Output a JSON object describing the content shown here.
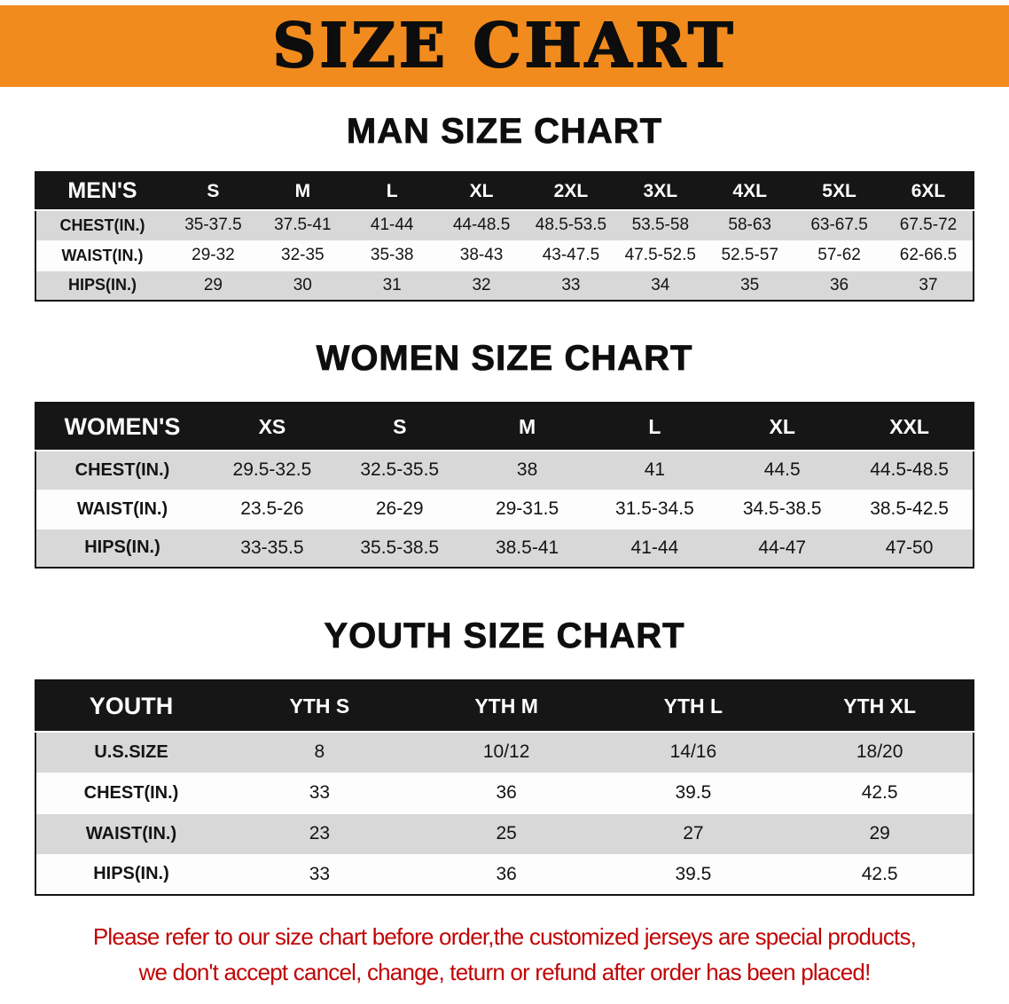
{
  "banner": {
    "title": "SIZE CHART"
  },
  "men": {
    "heading": "MAN SIZE CHART",
    "table": {
      "header": [
        "MEN'S",
        "S",
        "M",
        "L",
        "XL",
        "2XL",
        "3XL",
        "4XL",
        "5XL",
        "6XL"
      ],
      "rows": [
        [
          "CHEST(IN.)",
          "35-37.5",
          "37.5-41",
          "41-44",
          "44-48.5",
          "48.5-53.5",
          "53.5-58",
          "58-63",
          "63-67.5",
          "67.5-72"
        ],
        [
          "WAIST(IN.)",
          "29-32",
          "32-35",
          "35-38",
          "38-43",
          "43-47.5",
          "47.5-52.5",
          "52.5-57",
          "57-62",
          "62-66.5"
        ],
        [
          "HIPS(IN.)",
          "29",
          "30",
          "31",
          "32",
          "33",
          "34",
          "35",
          "36",
          "37"
        ]
      ]
    }
  },
  "women": {
    "heading": "WOMEN SIZE CHART",
    "table": {
      "header": [
        "WOMEN'S",
        "XS",
        "S",
        "M",
        "L",
        "XL",
        "XXL"
      ],
      "rows": [
        [
          "CHEST(IN.)",
          "29.5-32.5",
          "32.5-35.5",
          "38",
          "41",
          "44.5",
          "44.5-48.5"
        ],
        [
          "WAIST(IN.)",
          "23.5-26",
          "26-29",
          "29-31.5",
          "31.5-34.5",
          "34.5-38.5",
          "38.5-42.5"
        ],
        [
          "HIPS(IN.)",
          "33-35.5",
          "35.5-38.5",
          "38.5-41",
          "41-44",
          "44-47",
          "47-50"
        ]
      ]
    }
  },
  "youth": {
    "heading": "YOUTH SIZE CHART",
    "table": {
      "header": [
        "YOUTH",
        "YTH S",
        "YTH M",
        "YTH L",
        "YTH XL"
      ],
      "rows": [
        [
          "U.S.SIZE",
          "8",
          "10/12",
          "14/16",
          "18/20"
        ],
        [
          "CHEST(IN.)",
          "33",
          "36",
          "39.5",
          "42.5"
        ],
        [
          "WAIST(IN.)",
          "23",
          "25",
          "27",
          "29"
        ],
        [
          "HIPS(IN.)",
          "33",
          "36",
          "39.5",
          "42.5"
        ]
      ]
    }
  },
  "footer": {
    "line1": "Please refer to our size chart before order,the customized jerseys are special products,",
    "line2": "we don't accept cancel, change, teturn or refund after order has been placed!"
  },
  "colors": {
    "banner_orange": "#f28b1d",
    "header_black": "#161616",
    "row_gray": "#d8d8d8",
    "note_red": "#c00505"
  }
}
